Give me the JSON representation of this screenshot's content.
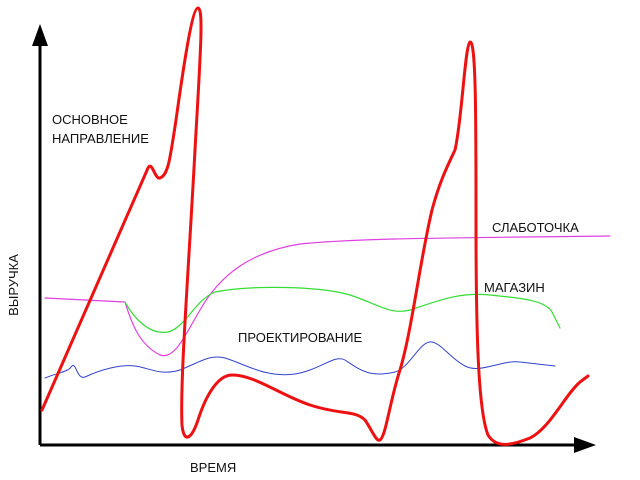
{
  "axes": {
    "y_label": "ВЫРУЧКА",
    "x_label": "ВРЕМЯ"
  },
  "curves": [
    {
      "label": [
        "ОСНОВНОЕ",
        "НАПРАВЛЕНИЕ"
      ]
    },
    {
      "label": [
        "СЛАБОТОЧКА"
      ]
    },
    {
      "label": [
        "МАГАЗИН"
      ]
    },
    {
      "label": [
        "ПРОЕКТИРОВАНИЕ"
      ]
    }
  ]
}
